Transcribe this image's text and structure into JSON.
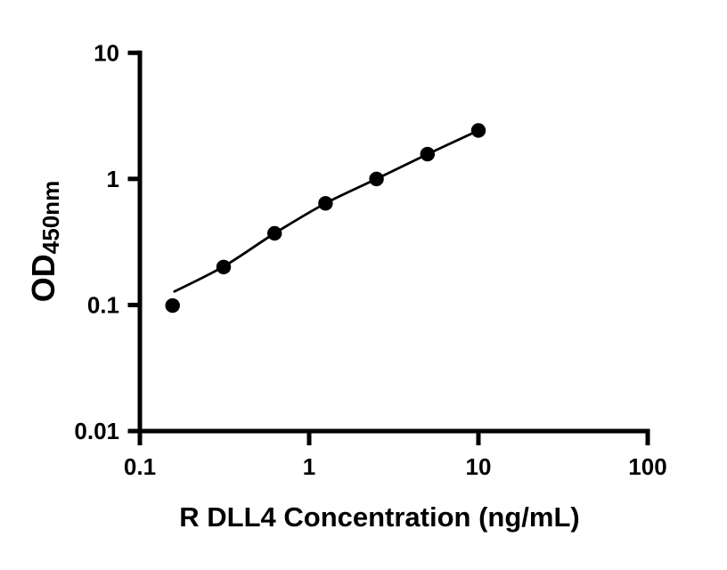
{
  "figure": {
    "background_color": "#ffffff",
    "ink_color": "#000000"
  },
  "chart_data": {
    "type": "scatter",
    "title": "",
    "xlabel": "R DLL4 Concentration (ng/mL)",
    "ylabel": "OD450nm",
    "ylabel_main": "OD",
    "ylabel_sub": "450nm",
    "x_scale": "log",
    "y_scale": "log",
    "xlim": [
      0.1,
      100
    ],
    "ylim": [
      0.01,
      10
    ],
    "x_ticks": [
      "0.1",
      "1",
      "10",
      "100"
    ],
    "y_ticks": [
      "0.01",
      "0.1",
      "1",
      "10"
    ],
    "grid": false,
    "legend": false,
    "marker_color": "#000000",
    "line_color": "#000000",
    "series": [
      {
        "name": "R DLL4 standard points",
        "role": "markers",
        "marker": "filled-circle",
        "points": [
          {
            "x": 0.156,
            "y": 0.099
          },
          {
            "x": 0.3125,
            "y": 0.2
          },
          {
            "x": 0.625,
            "y": 0.37
          },
          {
            "x": 1.25,
            "y": 0.64
          },
          {
            "x": 2.5,
            "y": 1.0
          },
          {
            "x": 5,
            "y": 1.57
          },
          {
            "x": 10,
            "y": 2.42
          }
        ]
      },
      {
        "name": "fitted standard curve",
        "role": "line",
        "points": [
          {
            "x": 0.16,
            "y": 0.128
          },
          {
            "x": 0.3125,
            "y": 0.202
          },
          {
            "x": 0.625,
            "y": 0.37
          },
          {
            "x": 1.25,
            "y": 0.64
          },
          {
            "x": 2.5,
            "y": 1.0
          },
          {
            "x": 5,
            "y": 1.57
          },
          {
            "x": 10,
            "y": 2.42
          }
        ]
      }
    ]
  }
}
